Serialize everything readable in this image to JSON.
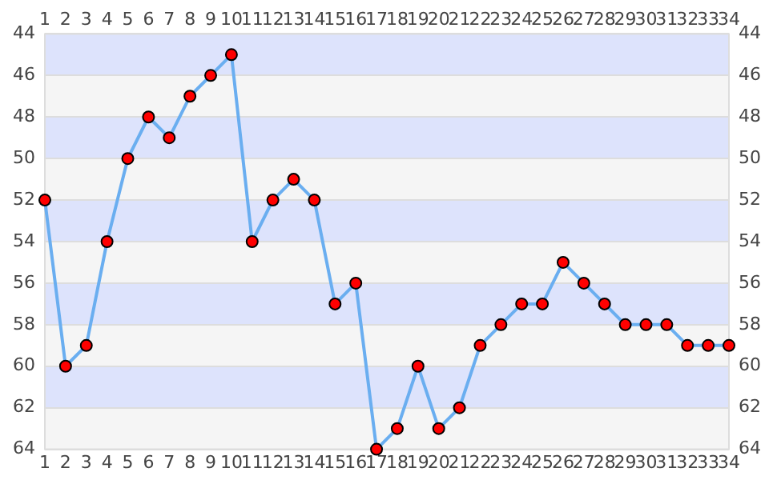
{
  "chart_data": {
    "type": "line",
    "x": [
      1,
      2,
      3,
      4,
      5,
      6,
      7,
      8,
      9,
      10,
      11,
      12,
      13,
      14,
      15,
      16,
      17,
      18,
      19,
      20,
      21,
      22,
      23,
      24,
      25,
      26,
      27,
      28,
      29,
      30,
      31,
      32,
      33,
      34
    ],
    "series": [
      {
        "color": "#6aaef0",
        "colors": [
          "#ff0000",
          "#ff0000",
          "#ff0000",
          "#ff0000",
          "#ff0000",
          "#ff0000",
          "#ff0000",
          "#ff0000",
          "#ff0000",
          "#ff0000",
          "#ff0000",
          "#ff0000",
          "#ff0000",
          "#ff0000",
          "#ff0000",
          "#ff0000",
          "#ff0000",
          "#ff0000",
          "#ff0000",
          "#ff0000",
          "#ff0000",
          "#ff0000",
          "#ff0000",
          "#ff0000",
          "#ff0000",
          "#ff0000",
          "#ff0000",
          "#ff0000",
          "#ff0000",
          "#ff0000",
          "#ff0000",
          "#ff0000",
          "#ff0000",
          "#ff0000"
        ],
        "values": [
          52,
          60,
          59,
          54,
          50,
          48,
          49,
          47,
          46,
          45,
          54,
          52,
          51,
          52,
          57,
          56,
          64,
          63,
          60,
          63,
          62,
          59,
          58,
          57,
          57,
          55,
          56,
          57,
          58,
          58,
          58,
          59,
          59,
          59
        ]
      }
    ],
    "xlim": [
      1,
      34
    ],
    "xticks": [
      1,
      2,
      3,
      4,
      5,
      6,
      7,
      8,
      9,
      10,
      11,
      12,
      13,
      14,
      15,
      16,
      17,
      18,
      19,
      20,
      21,
      22,
      23,
      24,
      25,
      26,
      27,
      28,
      29,
      30,
      31,
      32,
      33,
      34
    ],
    "x2lim": [
      1,
      34
    ],
    "x2ticks": [
      1,
      2,
      3,
      4,
      5,
      6,
      7,
      8,
      9,
      10,
      11,
      12,
      13,
      14,
      15,
      16,
      17,
      18,
      19,
      20,
      21,
      22,
      23,
      24,
      25,
      26,
      27,
      28,
      29,
      30,
      31,
      32,
      33,
      34
    ],
    "ylim": [
      64,
      44
    ],
    "yticks": [
      44,
      46,
      48,
      50,
      52,
      54,
      56,
      58,
      60,
      62,
      64
    ],
    "y2lim": [
      64,
      44
    ],
    "y2ticks": [
      44,
      46,
      48,
      50,
      52,
      54,
      56,
      58,
      60,
      62,
      64
    ],
    "bands": [
      {
        "axis": "y",
        "from": 44,
        "to": 46,
        "color": "#dde3fc"
      },
      {
        "axis": "y",
        "from": 46,
        "to": 48,
        "color": "#f5f5f5"
      },
      {
        "axis": "y",
        "from": 48,
        "to": 50,
        "color": "#dde3fc"
      },
      {
        "axis": "y",
        "from": 50,
        "to": 52,
        "color": "#f5f5f5"
      },
      {
        "axis": "y",
        "from": 52,
        "to": 54,
        "color": "#dde3fc"
      },
      {
        "axis": "y",
        "from": 54,
        "to": 56,
        "color": "#f5f5f5"
      },
      {
        "axis": "y",
        "from": 56,
        "to": 58,
        "color": "#dde3fc"
      },
      {
        "axis": "y",
        "from": 58,
        "to": 60,
        "color": "#f5f5f5"
      },
      {
        "axis": "y",
        "from": 60,
        "to": 62,
        "color": "#dde3fc"
      },
      {
        "axis": "y",
        "from": 62,
        "to": 64,
        "color": "#f5f5f5"
      }
    ],
    "grid": true,
    "marker": "circle",
    "line_style": "solid",
    "legend": false
  }
}
